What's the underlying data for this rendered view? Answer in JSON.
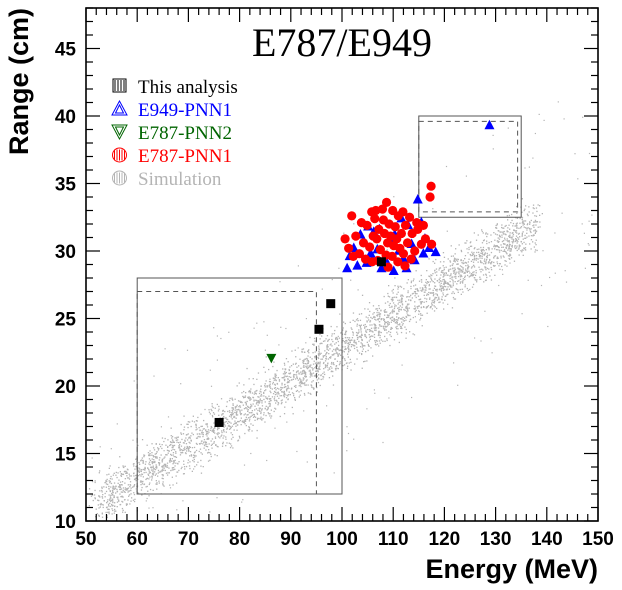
{
  "chart_data": {
    "type": "scatter",
    "title": "E787/E949",
    "xlabel": "Energy (MeV)",
    "ylabel": "Range (cm)",
    "xlim": [
      50,
      150
    ],
    "ylim": [
      10,
      48
    ],
    "x_ticks": [
      50,
      60,
      70,
      80,
      90,
      100,
      110,
      120,
      130,
      140,
      150
    ],
    "y_ticks": [
      10,
      15,
      20,
      25,
      30,
      35,
      40,
      45
    ],
    "legend_position": "top-left",
    "series": [
      {
        "name": "This analysis",
        "marker": "square",
        "color": "#000000",
        "points": [
          [
            76,
            17.3
          ],
          [
            95.5,
            24.2
          ],
          [
            97.8,
            26.1
          ],
          [
            107.7,
            29.2
          ]
        ]
      },
      {
        "name": "E949-PNN1",
        "marker": "triangle-up",
        "color": "#0000ff",
        "points": [
          [
            128.8,
            39.3
          ],
          [
            101.5,
            29.6
          ],
          [
            102.3,
            30.2
          ],
          [
            103.6,
            31.2
          ],
          [
            104.8,
            29.1
          ],
          [
            105.6,
            29.8
          ],
          [
            106.2,
            31.4
          ],
          [
            106.9,
            30.1
          ],
          [
            107.7,
            28.7
          ],
          [
            108.4,
            29.4
          ],
          [
            109.3,
            30.8
          ],
          [
            110.3,
            31.2
          ],
          [
            111.1,
            30.0
          ],
          [
            112.0,
            29.4
          ],
          [
            112.9,
            31.9
          ],
          [
            113.6,
            30.5
          ],
          [
            114.2,
            29.3
          ],
          [
            114.8,
            33.8
          ],
          [
            115.5,
            32.1
          ],
          [
            116.2,
            30.9
          ],
          [
            117.0,
            30.2
          ],
          [
            118.3,
            29.9
          ],
          [
            112.6,
            28.7
          ],
          [
            110.1,
            28.5
          ],
          [
            103.0,
            28.9
          ],
          [
            105.1,
            31.8
          ],
          [
            107.3,
            31.6
          ],
          [
            115.9,
            29.8
          ],
          [
            111.6,
            32.4
          ],
          [
            101.0,
            28.7
          ]
        ]
      },
      {
        "name": "E787-PNN2",
        "marker": "triangle-down",
        "color": "#006400",
        "points": [
          [
            86.2,
            22.1
          ]
        ]
      },
      {
        "name": "E787-PNN1",
        "marker": "circle",
        "color": "#ff0000",
        "points": [
          [
            101.3,
            30.2
          ],
          [
            101.9,
            32.6
          ],
          [
            102.7,
            31.1
          ],
          [
            103.4,
            29.8
          ],
          [
            104.2,
            30.6
          ],
          [
            104.9,
            31.9
          ],
          [
            105.4,
            30.3
          ],
          [
            105.9,
            29.2
          ],
          [
            106.4,
            32.4
          ],
          [
            106.8,
            30.9
          ],
          [
            107.2,
            31.6
          ],
          [
            107.5,
            30.1
          ],
          [
            107.9,
            33.1
          ],
          [
            108.3,
            31.3
          ],
          [
            108.6,
            29.7
          ],
          [
            108.9,
            30.6
          ],
          [
            109.2,
            32.0
          ],
          [
            109.5,
            31.1
          ],
          [
            109.8,
            29.6
          ],
          [
            110.1,
            30.4
          ],
          [
            110.4,
            31.8
          ],
          [
            110.7,
            30.9
          ],
          [
            111.0,
            32.6
          ],
          [
            111.3,
            30.2
          ],
          [
            111.6,
            31.3
          ],
          [
            112.0,
            29.8
          ],
          [
            112.4,
            31.9
          ],
          [
            112.8,
            30.6
          ],
          [
            113.2,
            32.5
          ],
          [
            113.7,
            31.3
          ],
          [
            114.2,
            30.0
          ],
          [
            114.8,
            31.6
          ],
          [
            115.5,
            30.5
          ],
          [
            116.3,
            30.9
          ],
          [
            117.5,
            30.5
          ],
          [
            117.2,
            34.0
          ],
          [
            117.4,
            34.8
          ],
          [
            106.1,
            31.1
          ],
          [
            108.1,
            32.3
          ],
          [
            109.9,
            33.0
          ],
          [
            111.9,
            32.9
          ],
          [
            103.8,
            32.1
          ],
          [
            104.6,
            29.4
          ],
          [
            107.0,
            29.3
          ],
          [
            110.9,
            29.2
          ],
          [
            113.5,
            29.4
          ],
          [
            112.3,
            28.9
          ],
          [
            109.0,
            28.8
          ],
          [
            105.8,
            32.9
          ],
          [
            114.6,
            32.1
          ],
          [
            102.2,
            29.6
          ],
          [
            100.6,
            30.9
          ],
          [
            115.9,
            31.9
          ],
          [
            108.7,
            33.6
          ],
          [
            106.6,
            33.0
          ]
        ]
      },
      {
        "name": "Simulation",
        "marker": "dot",
        "color": "#b4b4b4",
        "distribution": "dense band along Range ≈ 0.244·Energy − 1.5 from ~52 to ~138 MeV"
      }
    ],
    "signal_boxes": [
      {
        "energy": [
          60,
          100
        ],
        "range": [
          12,
          28
        ],
        "style": "solid"
      },
      {
        "energy": [
          60,
          95
        ],
        "range": [
          12,
          27
        ],
        "style": "dashed"
      },
      {
        "energy": [
          115,
          135
        ],
        "range": [
          32.5,
          40
        ],
        "style": "solid"
      },
      {
        "energy": [
          115,
          134.3
        ],
        "range": [
          32.9,
          39.6
        ],
        "style": "dashed"
      }
    ]
  }
}
